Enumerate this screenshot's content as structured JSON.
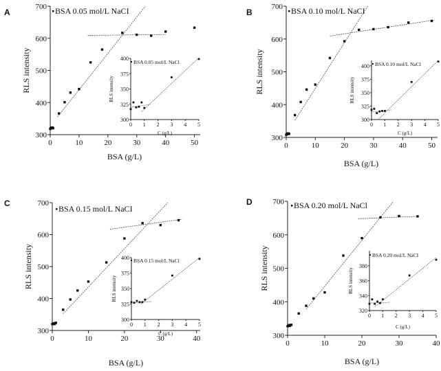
{
  "chart_data": [
    {
      "type": "scatter",
      "panel_label": "A",
      "legend": "BSA 0.05 mol/L NaCI",
      "xlabel": "BSA (g/L)",
      "ylabel": "RLS intensity",
      "xlim": [
        0,
        52
      ],
      "ylim": [
        300,
        700
      ],
      "xticks": [
        0,
        10,
        20,
        30,
        40,
        50
      ],
      "yticks": [
        300,
        400,
        500,
        600,
        700
      ],
      "points": [
        [
          0,
          318
        ],
        [
          0.2,
          320
        ],
        [
          0.4,
          322
        ],
        [
          0.6,
          320
        ],
        [
          0.8,
          322
        ],
        [
          1.0,
          320
        ],
        [
          3,
          366
        ],
        [
          5,
          401
        ],
        [
          7,
          431
        ],
        [
          10,
          442
        ],
        [
          14,
          525
        ],
        [
          18,
          565
        ],
        [
          25,
          617
        ],
        [
          30,
          611
        ],
        [
          35,
          608
        ],
        [
          40,
          621
        ],
        [
          50,
          633
        ]
      ],
      "fit_lines": [
        [
          [
            2.5,
            355
          ],
          [
            33,
            700
          ]
        ],
        [
          [
            13,
            609
          ],
          [
            40,
            612
          ]
        ]
      ],
      "inset": {
        "legend": "BSA 0.05 mol/L NaCl",
        "xlabel": "C (g/L)",
        "ylabel": "RLS intensity",
        "xlim": [
          0,
          5
        ],
        "ylim": [
          300,
          400
        ],
        "xticks": [
          0,
          1,
          2,
          3,
          4,
          5
        ],
        "yticks": [
          300,
          325,
          350,
          375,
          400
        ],
        "points": [
          [
            0,
            317
          ],
          [
            0.2,
            328
          ],
          [
            0.4,
            320
          ],
          [
            0.6,
            321
          ],
          [
            0.8,
            328
          ],
          [
            1.0,
            319
          ],
          [
            3,
            369
          ],
          [
            5,
            399
          ]
        ],
        "fit_lines": [
          [
            [
              0,
              320
            ],
            [
              1.5,
              325
            ]
          ],
          [
            [
              0.8,
              313
            ],
            [
              5,
              401
            ]
          ]
        ]
      }
    },
    {
      "type": "scatter",
      "panel_label": "B",
      "legend": "BSA 0.10 mol/L NaCI",
      "xlabel": "BSA (g/L)",
      "ylabel": "RLS intensity",
      "xlim": [
        0,
        52
      ],
      "ylim": [
        300,
        700
      ],
      "xticks": [
        0,
        10,
        20,
        30,
        40,
        50
      ],
      "yticks": [
        300,
        400,
        500,
        600,
        700
      ],
      "points": [
        [
          0,
          308
        ],
        [
          0.2,
          310
        ],
        [
          0.4,
          312
        ],
        [
          0.6,
          310
        ],
        [
          0.8,
          312
        ],
        [
          1.0,
          311
        ],
        [
          3,
          368
        ],
        [
          5,
          408
        ],
        [
          7,
          446
        ],
        [
          10,
          461
        ],
        [
          15,
          542
        ],
        [
          20,
          593
        ],
        [
          25,
          628
        ],
        [
          30,
          630
        ],
        [
          35,
          636
        ],
        [
          42,
          650
        ],
        [
          50,
          655
        ]
      ],
      "fit_lines": [
        [
          [
            3,
            352
          ],
          [
            28,
            700
          ]
        ],
        [
          [
            15,
            609
          ],
          [
            51,
            658
          ]
        ]
      ],
      "inset": {
        "legend": "BSA 0.10 mol/L NaCl",
        "xlabel": "C (g/L)",
        "ylabel": "RLS intensity",
        "xlim": [
          0,
          5
        ],
        "ylim": [
          300,
          410
        ],
        "xticks": [
          0,
          1,
          2,
          3,
          4,
          5
        ],
        "yticks": [
          300,
          325,
          350,
          375,
          400
        ],
        "points": [
          [
            0,
            318
          ],
          [
            0.2,
            320
          ],
          [
            0.4,
            312
          ],
          [
            0.6,
            315
          ],
          [
            0.8,
            316
          ],
          [
            1.0,
            316
          ],
          [
            3,
            370
          ],
          [
            5,
            408
          ]
        ],
        "fit_lines": [
          [
            [
              0,
              314
            ],
            [
              1.5,
              318
            ]
          ],
          [
            [
              0.5,
              300
            ],
            [
              5,
              410
            ]
          ]
        ]
      }
    },
    {
      "type": "scatter",
      "panel_label": "C",
      "legend": "BSA 0.15 mol/L NaCI",
      "xlabel": "BSA (g/L)",
      "ylabel": "RLS intensity",
      "xlim": [
        0,
        41
      ],
      "ylim": [
        300,
        700
      ],
      "xticks": [
        0,
        10,
        20,
        30,
        40
      ],
      "yticks": [
        300,
        400,
        500,
        600,
        700
      ],
      "points": [
        [
          0,
          320
        ],
        [
          0.2,
          322
        ],
        [
          0.4,
          322
        ],
        [
          0.6,
          320
        ],
        [
          0.8,
          323
        ],
        [
          1.0,
          324
        ],
        [
          3,
          365
        ],
        [
          5,
          397
        ],
        [
          7,
          425
        ],
        [
          10,
          453
        ],
        [
          15,
          513
        ],
        [
          20,
          588
        ],
        [
          25,
          636
        ],
        [
          30,
          630
        ],
        [
          35,
          645
        ]
      ],
      "fit_lines": [
        [
          [
            3,
            352
          ],
          [
            32,
            700
          ]
        ],
        [
          [
            16,
            617
          ],
          [
            36,
            648
          ]
        ]
      ],
      "inset": {
        "legend": "BSA 0.15 mol/L NaCl",
        "xlabel": "C (g/L)",
        "ylabel": "RLS intensity",
        "xlim": [
          0,
          5
        ],
        "ylim": [
          300,
          400
        ],
        "xticks": [
          0,
          1,
          2,
          3,
          4,
          5
        ],
        "yticks": [
          300,
          325,
          350,
          375,
          400
        ],
        "points": [
          [
            0,
            328
          ],
          [
            0.2,
            327
          ],
          [
            0.4,
            330
          ],
          [
            0.6,
            328
          ],
          [
            0.8,
            328
          ],
          [
            1.0,
            332
          ],
          [
            3,
            371
          ],
          [
            5,
            398
          ]
        ],
        "fit_lines": [
          [
            [
              0,
              327
            ],
            [
              1.5,
              329
            ]
          ],
          [
            [
              0.7,
              325
            ],
            [
              5,
              400
            ]
          ]
        ]
      }
    },
    {
      "type": "scatter",
      "panel_label": "D",
      "legend": "BSA 0.20 mol/L NaCl",
      "xlabel": "BSA (g/L)",
      "ylabel": "RLS intensity",
      "xlim": [
        0,
        40
      ],
      "ylim": [
        300,
        700
      ],
      "xticks": [
        0,
        10,
        20,
        30,
        40
      ],
      "yticks": [
        300,
        400,
        500,
        600,
        700
      ],
      "points": [
        [
          0,
          327
        ],
        [
          0.2,
          329
        ],
        [
          0.4,
          330
        ],
        [
          0.6,
          328
        ],
        [
          0.8,
          331
        ],
        [
          1.0,
          331
        ],
        [
          3,
          365
        ],
        [
          5,
          388
        ],
        [
          7,
          410
        ],
        [
          10,
          428
        ],
        [
          15,
          538
        ],
        [
          20,
          590
        ],
        [
          25,
          652
        ],
        [
          30,
          656
        ],
        [
          35,
          655
        ]
      ],
      "fit_lines": [
        [
          [
            5,
            378
          ],
          [
            28.5,
            700
          ]
        ],
        [
          [
            19,
            648
          ],
          [
            35,
            655
          ]
        ]
      ],
      "inset": {
        "legend": "BSA 0.20 mol/L NaCI",
        "xlabel": "C (g/L)",
        "ylabel": "RLS intensity",
        "xlim": [
          0,
          5
        ],
        "ylim": [
          320,
          400
        ],
        "xticks": [
          0,
          1,
          2,
          3,
          4,
          5
        ],
        "yticks": [
          320,
          340,
          360,
          380
        ],
        "points": [
          [
            0,
            329
          ],
          [
            0.2,
            335
          ],
          [
            0.4,
            329
          ],
          [
            0.6,
            332
          ],
          [
            0.8,
            330
          ],
          [
            1.0,
            335
          ],
          [
            3,
            367
          ],
          [
            5,
            388
          ]
        ],
        "fit_lines": [
          [
            [
              0,
              330
            ],
            [
              1.5,
              331
            ]
          ],
          [
            [
              0.4,
              325
            ],
            [
              5,
              391
            ]
          ]
        ]
      }
    }
  ]
}
